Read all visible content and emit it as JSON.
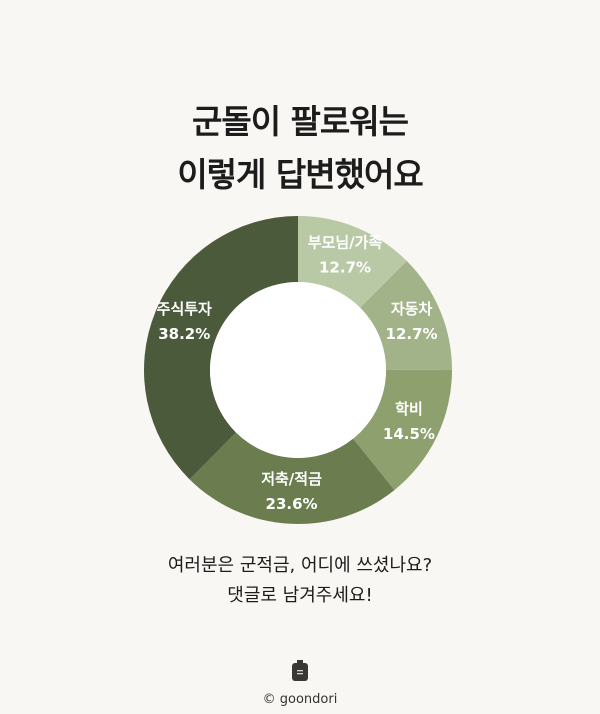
{
  "title": {
    "line1": "군돌이 팔로워는",
    "line2": "이렇게 답변했어요"
  },
  "chart_data": {
    "type": "pie",
    "variant": "donut",
    "start": "top",
    "direction": "clockwise",
    "slices": [
      {
        "label": "부모님/가족",
        "value": 12.7,
        "value_label": "12.7%",
        "color": "#b9c8a5"
      },
      {
        "label": "자동차",
        "value": 12.7,
        "value_label": "12.7%",
        "color": "#a2b38a"
      },
      {
        "label": "학비",
        "value": 14.5,
        "value_label": "14.5%",
        "color": "#8da06e"
      },
      {
        "label": "저축/적금",
        "value": 23.6,
        "value_label": "23.6%",
        "color": "#6b7d4f"
      },
      {
        "label": "주식투자",
        "value": 38.2,
        "value_label": "38.2%",
        "color": "#4b5a3a"
      }
    ]
  },
  "subtitle": {
    "line1": "여러분은 군적금, 어디에 쓰셨나요?",
    "line2": "댓글로 남겨주세요!"
  },
  "footer": {
    "credit": "© goondori",
    "logo_icon": "bag-logo-icon"
  }
}
